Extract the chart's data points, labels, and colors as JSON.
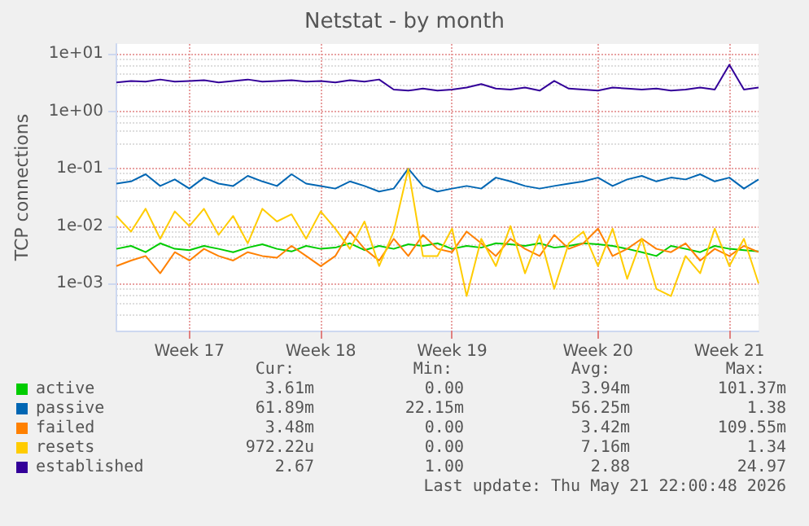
{
  "chart_data": {
    "type": "line",
    "title": "Netstat - by month",
    "ylabel": "TCP connections",
    "log": "y",
    "legend": "bottom left",
    "grid": true,
    "categories": [
      null,
      null,
      null,
      null,
      null,
      "Week 17",
      null,
      null,
      null,
      null,
      null,
      null,
      null,
      null,
      "Week 18",
      null,
      null,
      null,
      null,
      null,
      null,
      null,
      null,
      "Week 19",
      null,
      null,
      null,
      null,
      null,
      null,
      null,
      null,
      null,
      "Week 20",
      null,
      null,
      null,
      null,
      null,
      null,
      null,
      null,
      "Week 21",
      null,
      null
    ],
    "ylim": [
      0.00015,
      15
    ],
    "yticks": [
      {
        "value": 0.001,
        "label": "1e-03"
      },
      {
        "value": 0.01,
        "label": "1e-02"
      },
      {
        "value": 0.1,
        "label": "1e-01"
      },
      {
        "value": 1,
        "label": "1e+00"
      },
      {
        "value": 10,
        "label": "1e+01"
      }
    ],
    "series": [
      {
        "name": "active",
        "color": "#00cc00",
        "values": [
          0.004,
          0.0045,
          0.0035,
          0.005,
          0.004,
          0.0038,
          0.0045,
          0.004,
          0.0035,
          0.0042,
          0.0048,
          0.004,
          0.0036,
          0.0045,
          0.004,
          0.0042,
          0.005,
          0.0038,
          0.0045,
          0.004,
          0.0048,
          0.0045,
          0.005,
          0.004,
          0.0045,
          0.0042,
          0.005,
          0.0048,
          0.0045,
          0.005,
          0.0042,
          0.0045,
          0.005,
          0.0048,
          0.0045,
          0.004,
          0.0035,
          0.003,
          0.0045,
          0.004,
          0.0035,
          0.0045,
          0.004,
          0.0038,
          0.0036
        ]
      },
      {
        "name": "passive",
        "color": "#0066b3",
        "values": [
          0.055,
          0.06,
          0.08,
          0.05,
          0.065,
          0.045,
          0.07,
          0.055,
          0.05,
          0.075,
          0.06,
          0.05,
          0.08,
          0.055,
          0.05,
          0.045,
          0.06,
          0.05,
          0.04,
          0.045,
          0.1,
          0.05,
          0.04,
          0.045,
          0.05,
          0.045,
          0.07,
          0.06,
          0.05,
          0.045,
          0.05,
          0.055,
          0.06,
          0.07,
          0.05,
          0.065,
          0.075,
          0.06,
          0.07,
          0.065,
          0.08,
          0.06,
          0.07,
          0.045,
          0.065
        ]
      },
      {
        "name": "failed",
        "color": "#ff8000",
        "values": [
          0.002,
          0.0025,
          0.003,
          0.0015,
          0.0035,
          0.0025,
          0.004,
          0.003,
          0.0025,
          0.0035,
          0.003,
          0.0028,
          0.0045,
          0.003,
          0.002,
          0.003,
          0.008,
          0.004,
          0.0025,
          0.006,
          0.003,
          0.007,
          0.004,
          0.0035,
          0.008,
          0.005,
          0.003,
          0.006,
          0.004,
          0.003,
          0.007,
          0.004,
          0.005,
          0.009,
          0.003,
          0.004,
          0.006,
          0.004,
          0.0035,
          0.005,
          0.0025,
          0.004,
          0.003,
          0.0045,
          0.0035
        ]
      },
      {
        "name": "resets",
        "color": "#ffcc00",
        "values": [
          0.015,
          0.008,
          0.02,
          0.006,
          0.018,
          0.01,
          0.02,
          0.007,
          0.015,
          0.005,
          0.02,
          0.012,
          0.016,
          0.006,
          0.018,
          0.009,
          0.004,
          0.012,
          0.002,
          0.008,
          0.1,
          0.003,
          0.003,
          0.009,
          0.0006,
          0.006,
          0.002,
          0.01,
          0.0015,
          0.007,
          0.0008,
          0.005,
          0.008,
          0.002,
          0.009,
          0.0012,
          0.006,
          0.0008,
          0.0006,
          0.003,
          0.0015,
          0.009,
          0.002,
          0.006,
          0.001
        ]
      },
      {
        "name": "established",
        "color": "#330099",
        "values": [
          3.2,
          3.4,
          3.3,
          3.6,
          3.3,
          3.4,
          3.5,
          3.2,
          3.4,
          3.6,
          3.3,
          3.4,
          3.5,
          3.3,
          3.4,
          3.2,
          3.5,
          3.3,
          3.6,
          2.4,
          2.3,
          2.5,
          2.3,
          2.4,
          2.6,
          3.0,
          2.5,
          2.4,
          2.6,
          2.3,
          3.4,
          2.5,
          2.4,
          2.3,
          2.6,
          2.5,
          2.4,
          2.5,
          2.3,
          2.4,
          2.6,
          2.4,
          6.5,
          2.4,
          2.6
        ]
      }
    ],
    "annotations": [
      "Cur:",
      "Min:",
      "Avg:",
      "Max:",
      "3.61m",
      "0.00",
      "3.94m",
      "101.37m",
      "61.89m",
      "22.15m",
      "56.25m",
      "1.38",
      "3.48m",
      "0.00",
      "3.42m",
      "109.55m",
      "972.22u",
      "0.00",
      "7.16m",
      "1.34",
      "2.67",
      "1.00",
      "2.88",
      "24.97",
      "Last update: Thu May 21 22:00:48 2026"
    ]
  }
}
